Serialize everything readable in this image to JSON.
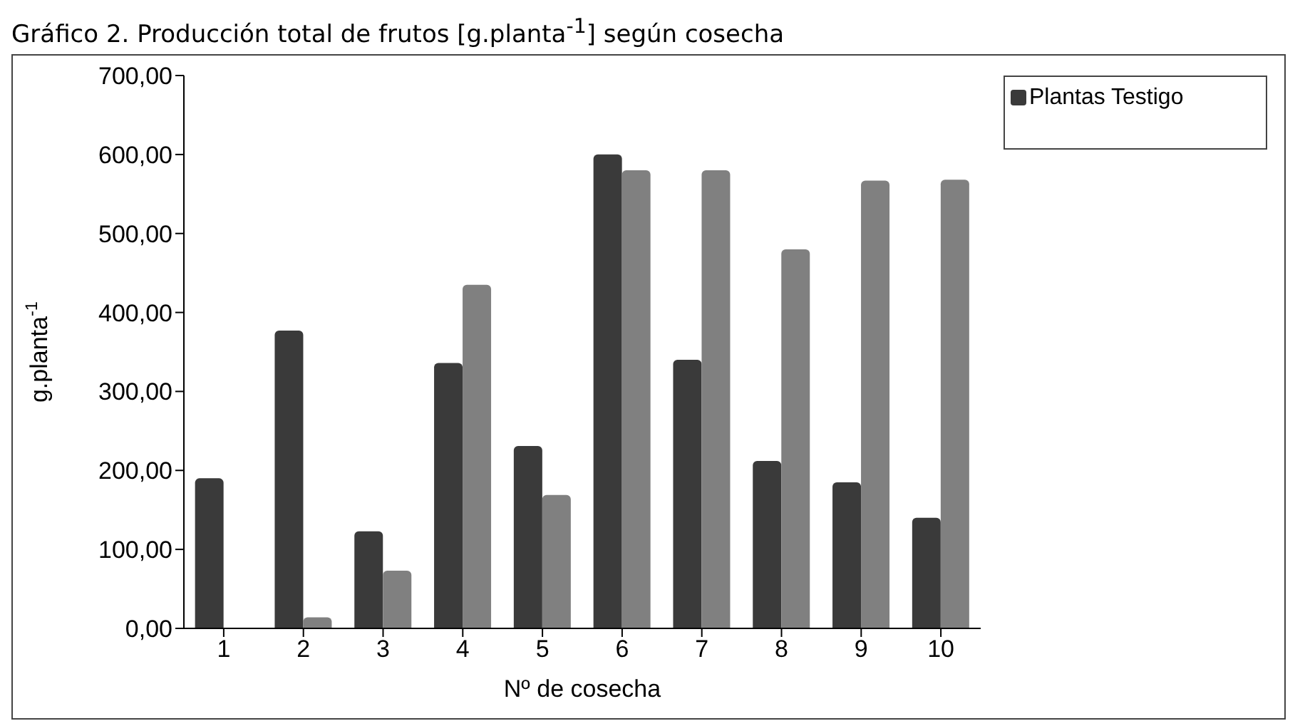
{
  "chart_data": {
    "type": "bar",
    "title": "Gráfico 2. Producción total de frutos [g.planta$^{-1}$] según cosecha",
    "xlabel": "Nº de cosecha",
    "ylabel": "g.planta$^{-1}$",
    "categories": [
      "1",
      "2",
      "3",
      "4",
      "5",
      "6",
      "7",
      "8",
      "9",
      "10"
    ],
    "series": [
      {
        "name": "Plantas Testigo",
        "color": "#3a3a3a",
        "values": [
          190,
          377,
          123,
          336,
          231,
          600,
          340,
          212,
          185,
          140
        ]
      },
      {
        "color": "#808080",
        "values": [
          null,
          14,
          73,
          435,
          169,
          580,
          580,
          480,
          567,
          568
        ]
      }
    ],
    "ylim": [
      0,
      700
    ],
    "yticks": [
      {
        "value": 0,
        "label": "0,00"
      },
      {
        "value": 100,
        "label": "100,00"
      },
      {
        "value": 200,
        "label": "200,00"
      },
      {
        "value": 300,
        "label": "300,00"
      },
      {
        "value": 400,
        "label": "400,00"
      },
      {
        "value": 500,
        "label": "500,00"
      },
      {
        "value": 600,
        "label": "600,00"
      },
      {
        "value": 700,
        "label": "700,00"
      }
    ],
    "grid": false,
    "legend": "top right"
  }
}
